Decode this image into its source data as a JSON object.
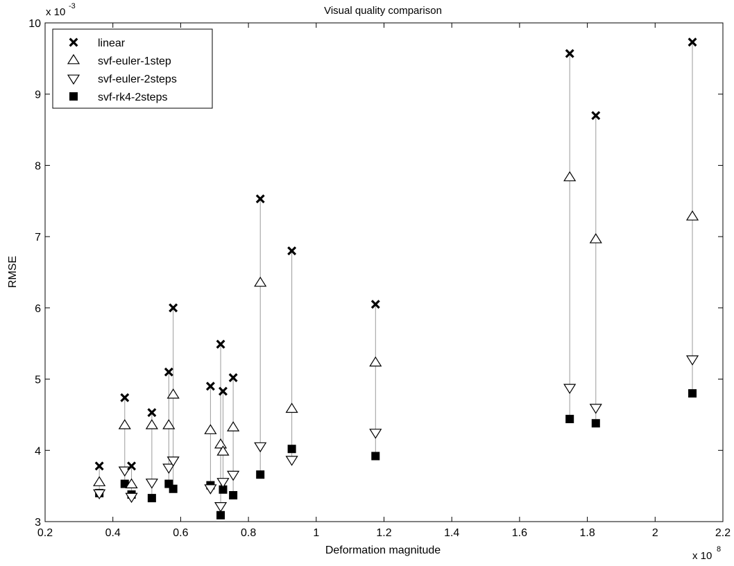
{
  "chart_data": {
    "type": "scatter",
    "title": "Visual quality comparison",
    "xlabel": "Deformation magnitude",
    "ylabel": "RMSE",
    "x_exponent_label": "x 10",
    "x_exponent": "8",
    "y_exponent_label": "x 10",
    "y_exponent": "-3",
    "xlim": [
      0.2,
      2.2
    ],
    "ylim": [
      3,
      10
    ],
    "x_ticks": [
      0.2,
      0.4,
      0.6,
      0.8,
      1,
      1.2,
      1.4,
      1.6,
      1.8,
      2,
      2.2
    ],
    "x_tick_labels": [
      "0.2",
      "0.4",
      "0.6",
      "0.8",
      "1",
      "1.2",
      "1.4",
      "1.6",
      "1.8",
      "2",
      "2.2"
    ],
    "y_ticks": [
      3,
      4,
      5,
      6,
      7,
      8,
      9,
      10
    ],
    "y_tick_labels": [
      "3",
      "4",
      "5",
      "6",
      "7",
      "8",
      "9",
      "10"
    ],
    "grid": false,
    "legend_position": "top-left",
    "x": [
      0.36,
      0.435,
      0.455,
      0.515,
      0.565,
      0.578,
      0.688,
      0.718,
      0.725,
      0.755,
      0.835,
      0.928,
      1.175,
      1.748,
      1.825,
      2.11
    ],
    "series": [
      {
        "name": "linear",
        "marker": "x",
        "values": [
          3.78,
          4.74,
          3.78,
          4.53,
          5.1,
          6.0,
          4.9,
          5.49,
          4.83,
          5.02,
          7.53,
          6.8,
          6.05,
          9.57,
          8.7,
          9.73
        ]
      },
      {
        "name": "svf-euler-1step",
        "marker": "triangle-up",
        "values": [
          3.55,
          4.35,
          3.52,
          4.35,
          4.35,
          4.78,
          4.28,
          4.08,
          3.98,
          4.32,
          6.35,
          4.58,
          5.23,
          7.83,
          6.96,
          7.28
        ]
      },
      {
        "name": "svf-euler-2steps",
        "marker": "triangle-down",
        "values": [
          3.4,
          3.72,
          3.35,
          3.55,
          3.76,
          3.86,
          3.47,
          3.22,
          3.56,
          3.66,
          4.06,
          3.87,
          4.25,
          4.88,
          4.6,
          5.28
        ]
      },
      {
        "name": "svf-rk4-2steps",
        "marker": "square",
        "values": [
          3.4,
          3.53,
          3.38,
          3.33,
          3.53,
          3.46,
          3.51,
          3.09,
          3.45,
          3.37,
          3.66,
          4.02,
          3.92,
          4.44,
          4.38,
          4.8
        ]
      }
    ]
  }
}
